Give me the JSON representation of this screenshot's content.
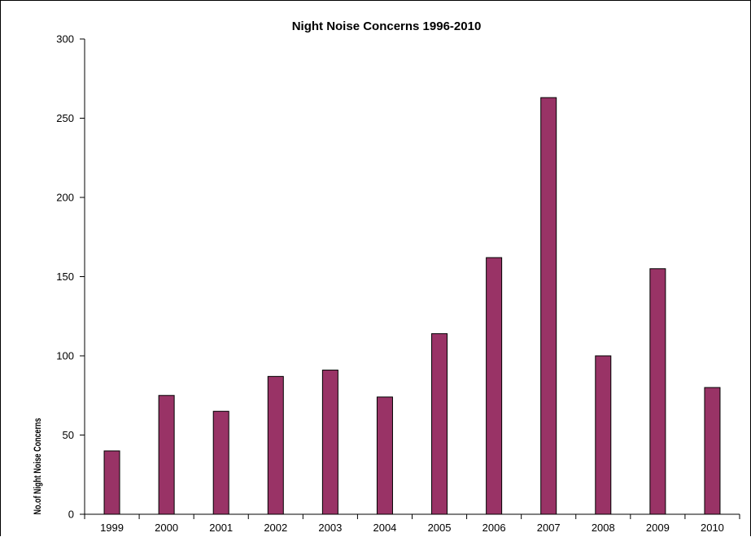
{
  "chart_data": {
    "type": "bar",
    "title": "Night Noise Concerns 1996-2010",
    "xlabel": "",
    "ylabel": "No.of Night Noise Concerns",
    "categories": [
      "1999",
      "2000",
      "2001",
      "2002",
      "2003",
      "2004",
      "2005",
      "2006",
      "2007",
      "2008",
      "2009",
      "2010"
    ],
    "values": [
      40,
      75,
      65,
      87,
      91,
      74,
      114,
      162,
      263,
      100,
      155,
      80
    ],
    "ylim": [
      0,
      300
    ],
    "yticks": [
      0,
      50,
      100,
      150,
      200,
      250,
      300
    ],
    "grid": false,
    "legend": "none",
    "bar_color": "#993366",
    "bar_edge_color": "#000000"
  }
}
